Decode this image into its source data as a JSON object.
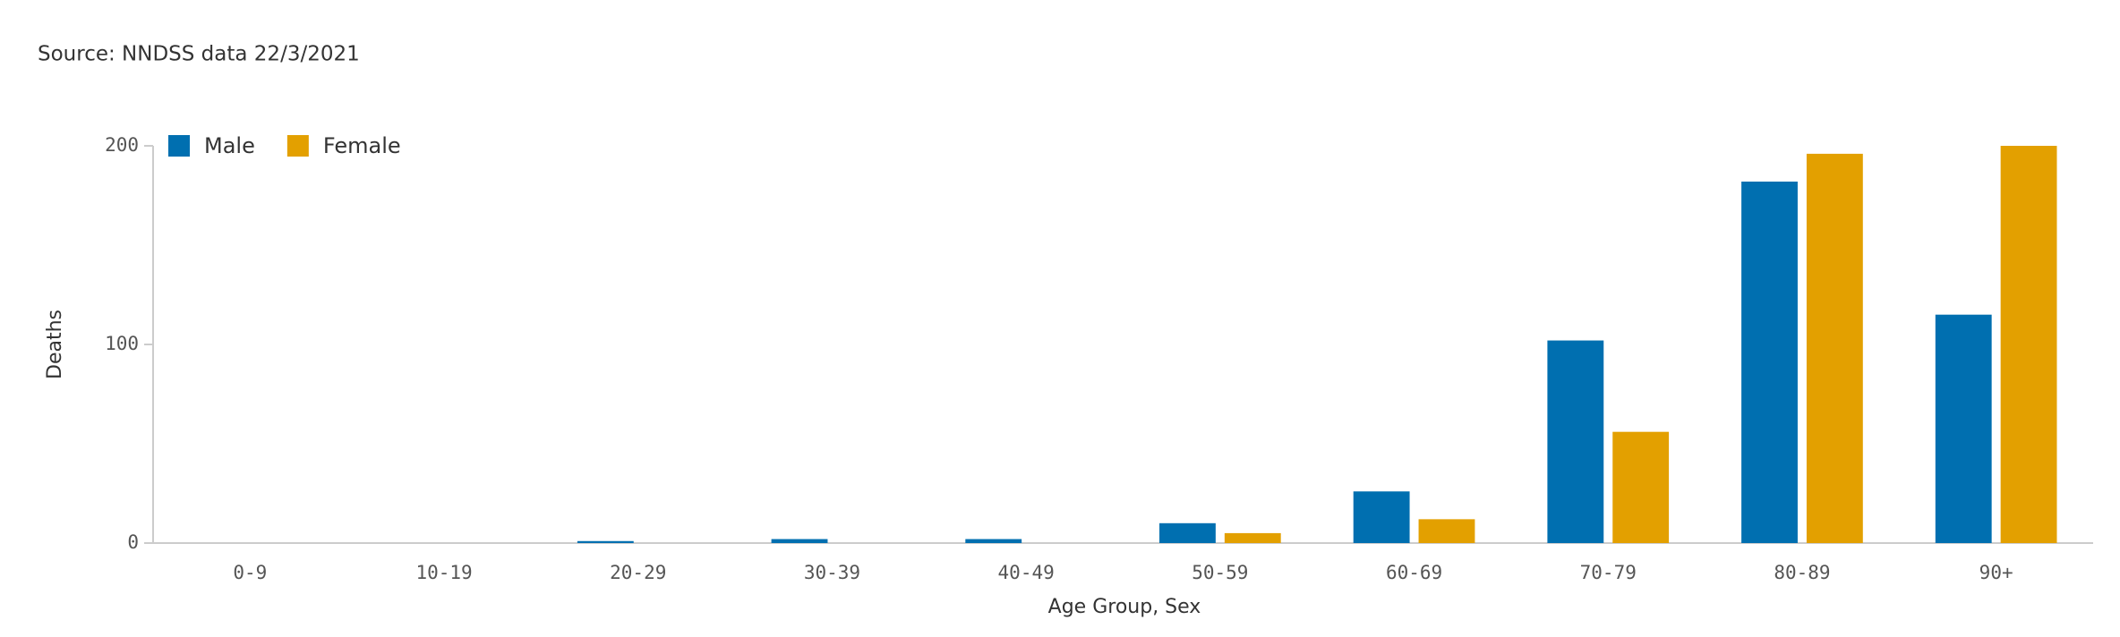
{
  "chart_data": {
    "type": "bar",
    "subtitle": "Source: NNDSS data 22/3/2021",
    "x_label": "Age Group, Sex",
    "y_label": "Deaths",
    "categories": [
      "0-9",
      "10-19",
      "20-29",
      "30-39",
      "40-49",
      "50-59",
      "60-69",
      "70-79",
      "80-89",
      "90+"
    ],
    "series": [
      {
        "name": "Male",
        "color": "#006fb0",
        "values": [
          0,
          0,
          1,
          2,
          2,
          10,
          26,
          102,
          182,
          115
        ]
      },
      {
        "name": "Female",
        "color": "#e3a000",
        "values": [
          0,
          0,
          0,
          0,
          0,
          5,
          12,
          56,
          196,
          200
        ]
      }
    ],
    "ylim": [
      0,
      200
    ],
    "yticks": [
      0,
      100,
      200
    ],
    "legend": "top-left"
  }
}
